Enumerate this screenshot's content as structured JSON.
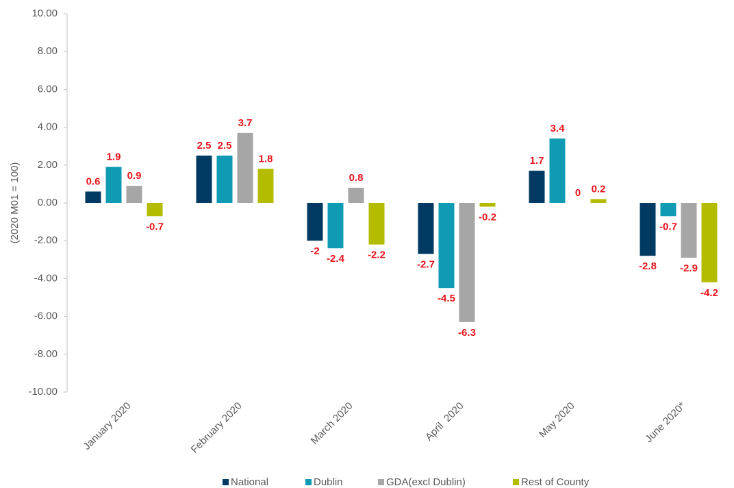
{
  "chart_data": {
    "type": "bar",
    "y_label": "(2020 M01 = 100)",
    "categories": [
      "January 2020",
      "February 2020",
      "March 2020",
      "April  2020",
      "May 2020",
      "June 2020*"
    ],
    "series": [
      {
        "name": "National",
        "color": "#003a63",
        "values": [
          0.6,
          2.5,
          -2,
          -2.7,
          1.7,
          -2.8
        ]
      },
      {
        "name": "Dublin",
        "color": "#0f9bb4",
        "values": [
          1.9,
          2.5,
          -2.4,
          -4.5,
          3.4,
          -0.7
        ]
      },
      {
        "name": "GDA(excl Dublin)",
        "color": "#a6a6a6",
        "values": [
          0.9,
          3.7,
          0.8,
          -6.3,
          0,
          -2.9
        ]
      },
      {
        "name": "Rest of County",
        "color": "#b4bc00",
        "values": [
          -0.7,
          1.8,
          -2.2,
          -0.2,
          0.2,
          -4.2
        ]
      }
    ],
    "value_label_color": "#e8141b",
    "ylim": [
      -10,
      10
    ],
    "yticks": [
      {
        "value": -10,
        "label": "-10.00"
      },
      {
        "value": -8,
        "label": "-8.00"
      },
      {
        "value": -6,
        "label": "-6.00"
      },
      {
        "value": -4,
        "label": "-4.00"
      },
      {
        "value": -2,
        "label": "-2.00"
      },
      {
        "value": 0,
        "label": "0.00"
      },
      {
        "value": 2,
        "label": "2.00"
      },
      {
        "value": 4,
        "label": "4.00"
      },
      {
        "value": 6,
        "label": "6.00"
      },
      {
        "value": 8,
        "label": "8.00"
      },
      {
        "value": 10,
        "label": "10.00"
      }
    ],
    "legend": "bottom"
  }
}
